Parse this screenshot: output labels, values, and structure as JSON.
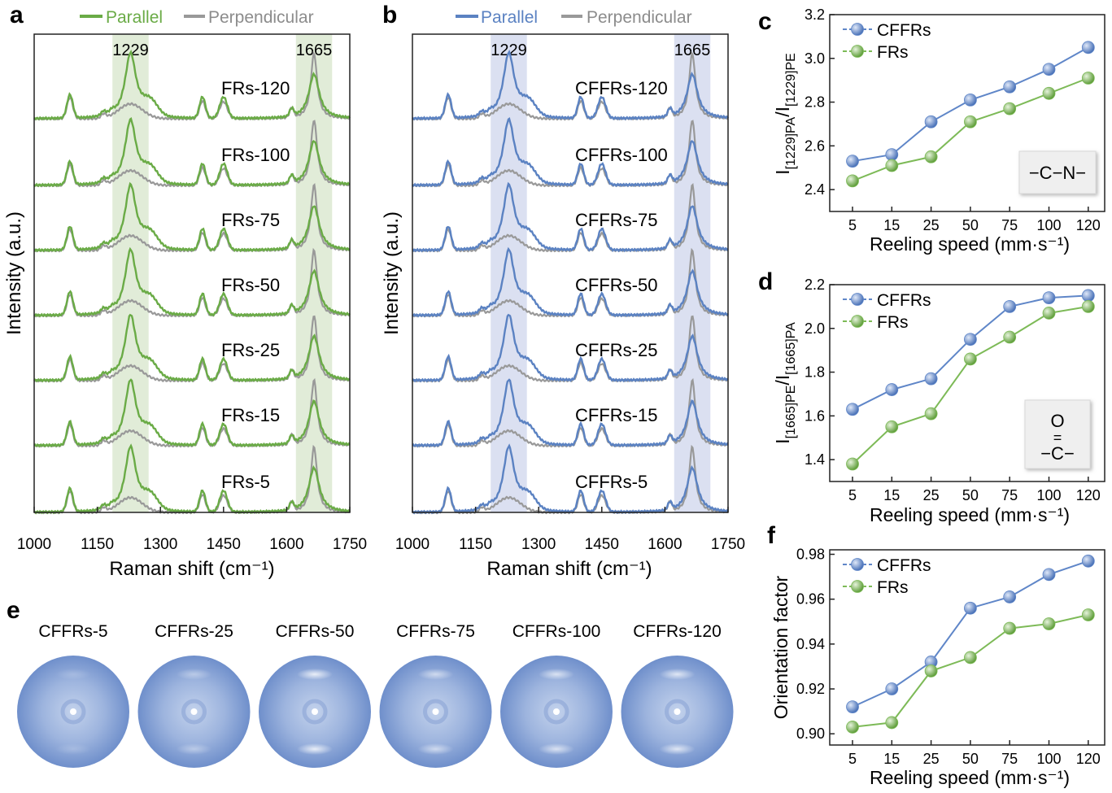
{
  "colors": {
    "green": "#6aab46",
    "blue": "#5b82c2",
    "gray": "#999999",
    "band_green": "#e1ecd8",
    "band_blue": "#dbe0f1",
    "marker_blue": "#5f86c8",
    "marker_green": "#7dba57"
  },
  "panel_labels": [
    "a",
    "b",
    "c",
    "d",
    "e",
    "f"
  ],
  "chart_data": [
    {
      "panel": "a",
      "type": "line",
      "legend": [
        "Parallel",
        "Perpendicular"
      ],
      "xlabel": "Raman shift (cm⁻¹)",
      "ylabel": "Intensity (a.u.)",
      "xlim": [
        1000,
        1750
      ],
      "xticks": [
        "1000",
        "1150",
        "1300",
        "1450",
        "1600",
        "1750"
      ],
      "bands": [
        {
          "center": 1229,
          "label": "1229"
        },
        {
          "center": 1665,
          "label": "1665"
        }
      ],
      "peaks": [
        1085,
        1165,
        1229,
        1400,
        1450,
        1610,
        1665
      ],
      "samples": [
        "FRs-120",
        "FRs-100",
        "FRs-75",
        "FRs-50",
        "FRs-25",
        "FRs-15",
        "FRs-5"
      ],
      "series": [
        {
          "name": "Parallel"
        },
        {
          "name": "Perpendicular"
        }
      ]
    },
    {
      "panel": "b",
      "type": "line",
      "legend": [
        "Parallel",
        "Perpendicular"
      ],
      "xlabel": "Raman shift (cm⁻¹)",
      "ylabel": "Intensity (a.u.)",
      "xlim": [
        1000,
        1750
      ],
      "xticks": [
        "1000",
        "1150",
        "1300",
        "1450",
        "1600",
        "1750"
      ],
      "bands": [
        {
          "center": 1229,
          "label": "1229"
        },
        {
          "center": 1665,
          "label": "1665"
        }
      ],
      "peaks": [
        1085,
        1165,
        1229,
        1400,
        1450,
        1610,
        1665
      ],
      "samples": [
        "CFFRs-120",
        "CFFRs-100",
        "CFFRs-75",
        "CFFRs-50",
        "CFFRs-25",
        "CFFRs-15",
        "CFFRs-5"
      ],
      "series": [
        {
          "name": "Parallel"
        },
        {
          "name": "Perpendicular"
        }
      ]
    },
    {
      "panel": "c",
      "type": "line",
      "categories": [
        "5",
        "15",
        "25",
        "50",
        "75",
        "100",
        "120"
      ],
      "xlabel": "Reeling speed (mm·s⁻¹)",
      "ylabel_main": "I",
      "ylabel_sub1": "[1229]PA",
      "ylabel_mid": "/I",
      "ylabel_sub2": "[1229]PE",
      "ylim": [
        2.3,
        3.2
      ],
      "yticks": [
        "2.4",
        "2.6",
        "2.8",
        "3.0",
        "3.2"
      ],
      "series": [
        {
          "name": "CFFRs",
          "values": [
            2.53,
            2.56,
            2.71,
            2.81,
            2.87,
            2.95,
            3.05
          ]
        },
        {
          "name": "FRs",
          "values": [
            2.44,
            2.51,
            2.55,
            2.71,
            2.77,
            2.84,
            2.91
          ]
        }
      ],
      "inset": [
        "−C−N−"
      ]
    },
    {
      "panel": "d",
      "type": "line",
      "categories": [
        "5",
        "15",
        "25",
        "50",
        "75",
        "100",
        "120"
      ],
      "xlabel": "Reeling speed (mm·s⁻¹)",
      "ylabel_main": "I",
      "ylabel_sub1": "[1665]PE",
      "ylabel_mid": "/I",
      "ylabel_sub2": "[1665]PA",
      "ylim": [
        1.3,
        2.2
      ],
      "yticks": [
        "1.4",
        "1.6",
        "1.8",
        "2.0",
        "2.2"
      ],
      "series": [
        {
          "name": "CFFRs",
          "values": [
            1.63,
            1.72,
            1.77,
            1.95,
            2.1,
            2.14,
            2.15
          ]
        },
        {
          "name": "FRs",
          "values": [
            1.38,
            1.55,
            1.61,
            1.86,
            1.96,
            2.07,
            2.1
          ]
        }
      ],
      "inset": [
        "O",
        "=",
        "−C−"
      ]
    },
    {
      "panel": "f",
      "type": "line",
      "categories": [
        "5",
        "15",
        "25",
        "50",
        "75",
        "100",
        "120"
      ],
      "xlabel": "Reeling speed (mm·s⁻¹)",
      "ylabel": "Orientation factor",
      "ylim": [
        0.895,
        0.982
      ],
      "yticks": [
        "0.90",
        "0.92",
        "0.94",
        "0.96",
        "0.98"
      ],
      "series": [
        {
          "name": "CFFRs",
          "values": [
            0.912,
            0.92,
            0.932,
            0.956,
            0.961,
            0.971,
            0.977
          ]
        },
        {
          "name": "FRs",
          "values": [
            0.903,
            0.905,
            0.928,
            0.934,
            0.947,
            0.949,
            0.953
          ]
        }
      ]
    }
  ],
  "xrd_patterns": {
    "panel": "e",
    "labels": [
      "CFFRs-5",
      "CFFRs-25",
      "CFFRs-50",
      "CFFRs-75",
      "CFFRs-100",
      "CFFRs-120"
    ],
    "arc_intensity": [
      0.2,
      0.4,
      0.85,
      0.6,
      0.7,
      0.75
    ]
  }
}
